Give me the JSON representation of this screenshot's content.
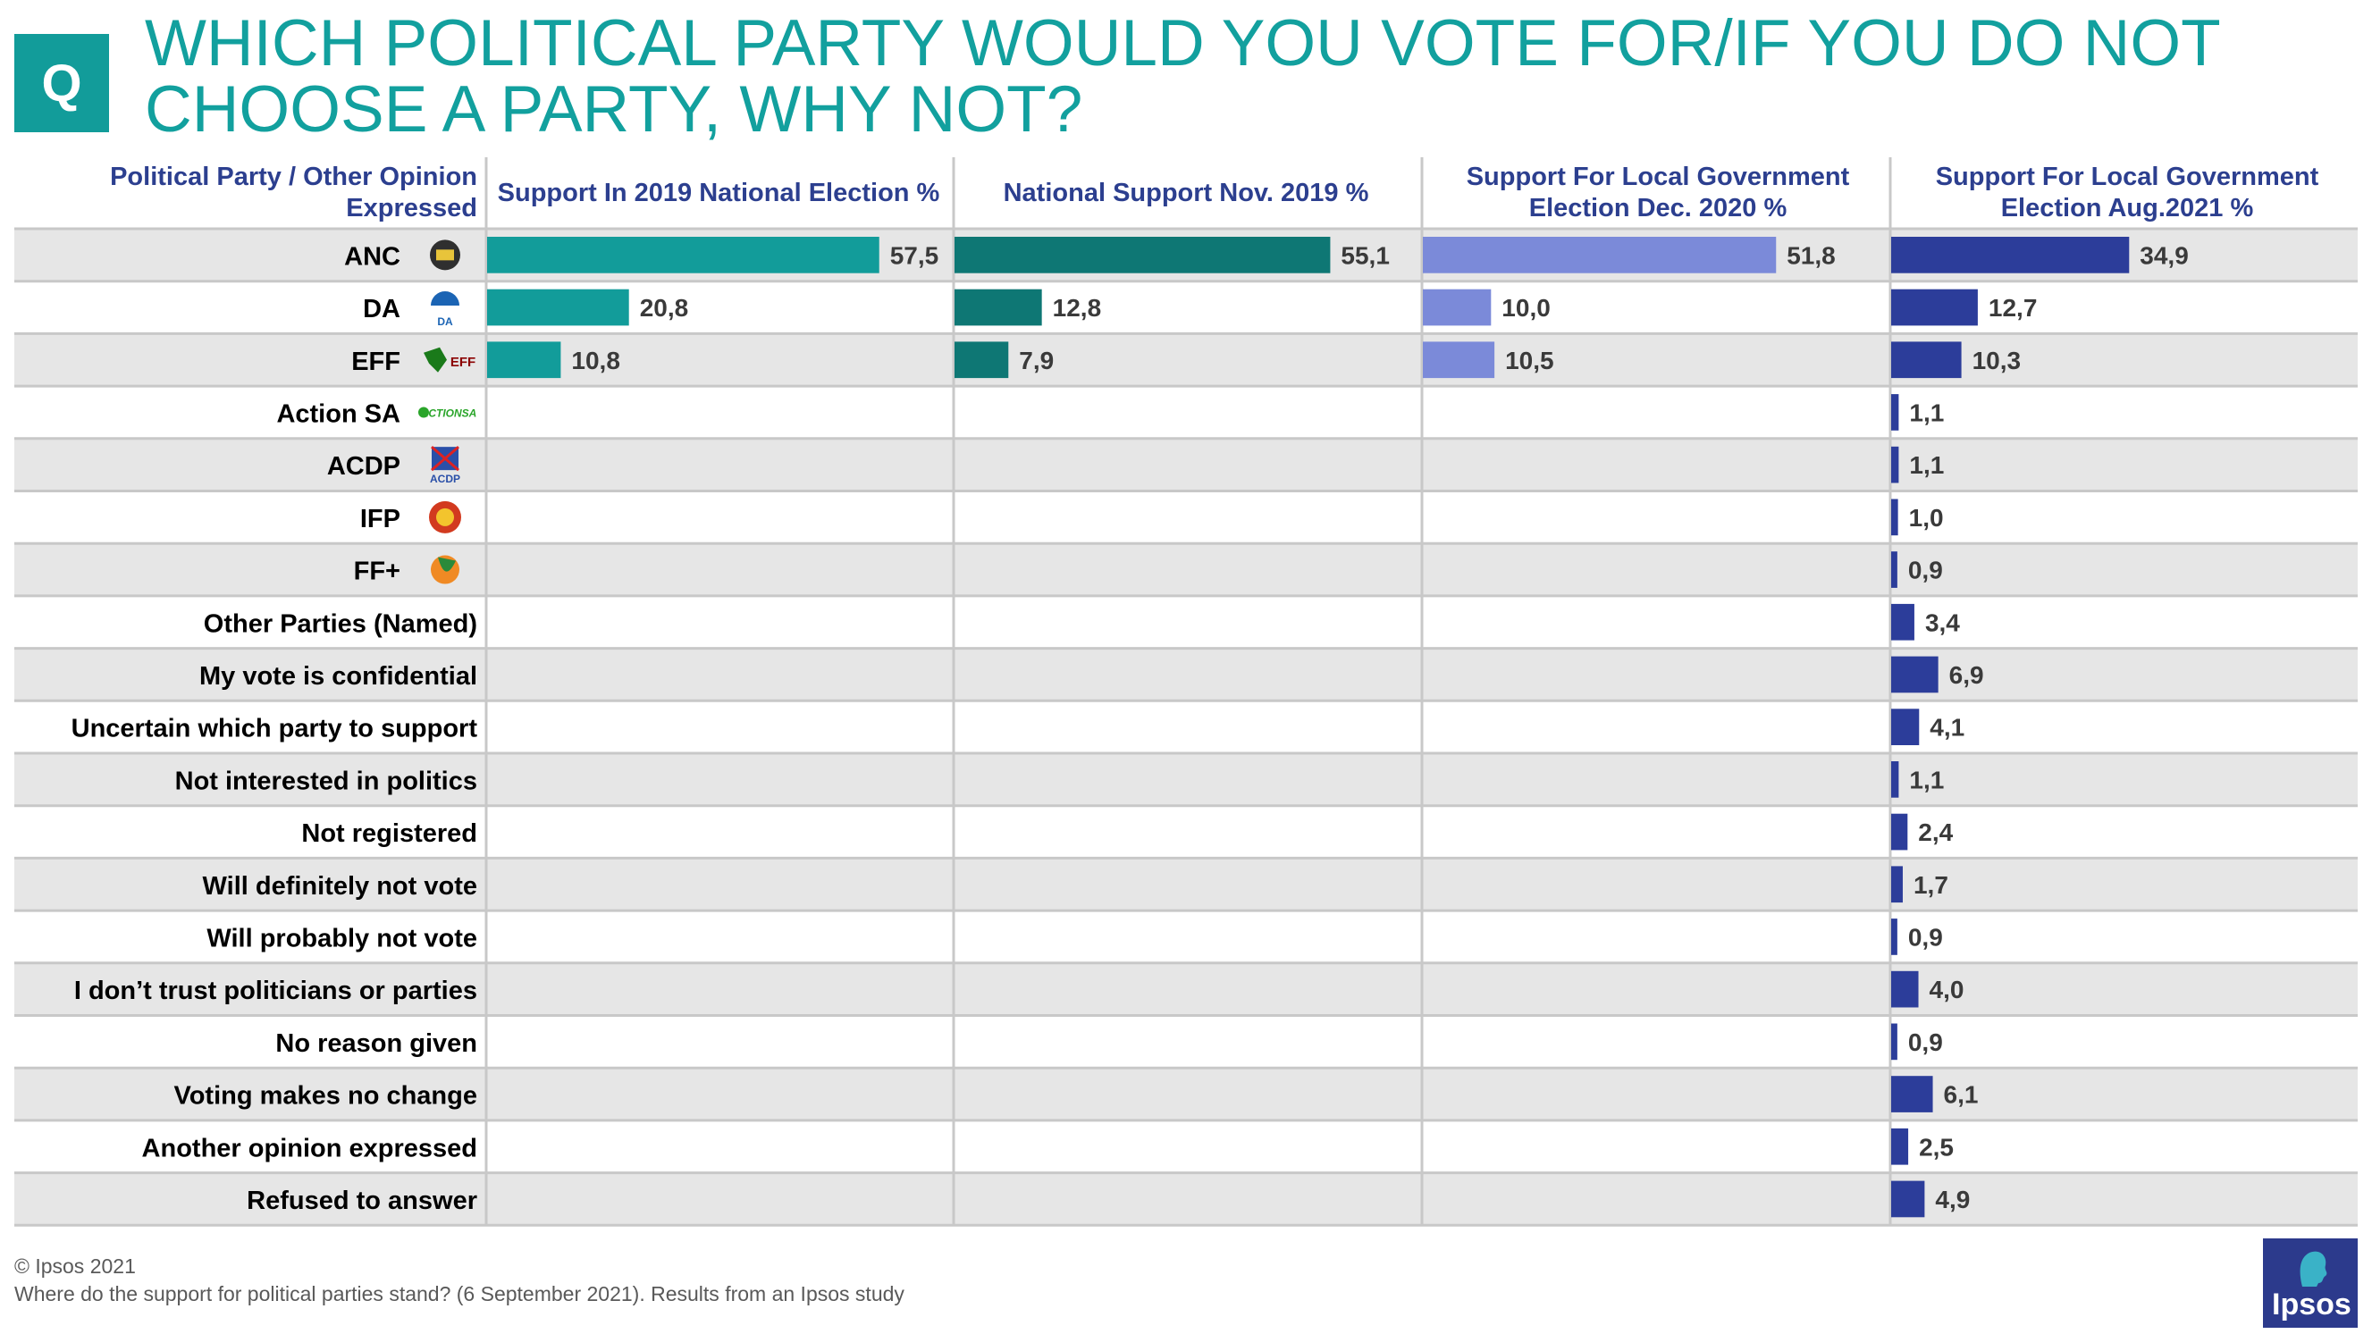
{
  "badge": "Q",
  "title": "WHICH POLITICAL PARTY WOULD YOU VOTE FOR/IF YOU DO NOT CHOOSE A PARTY, WHY NOT?",
  "footer": {
    "copyright": "© Ipsos 2021",
    "source": "Where do the support for political parties stand? (6 September 2021). Results from an Ipsos study"
  },
  "logo_text": "Ipsos",
  "colors": {
    "title": "#12a09e",
    "header_text": "#2c3f8f",
    "band": "#e6e6e6",
    "divider": "#c8c8c8"
  },
  "chart_data": {
    "type": "bar",
    "orientation": "horizontal",
    "label_column_header": "Political Party / Other Opinion Expressed",
    "categories": [
      "ANC",
      "DA",
      "EFF",
      "Action SA",
      "ACDP",
      "IFP",
      "FF+",
      "Other Parties (Named)",
      "My vote is confidential",
      "Uncertain which party to support",
      "Not interested in politics",
      "Not registered",
      "Will definitely not vote",
      "Will probably not vote",
      "I don’t trust politicians or parties",
      "No reason given",
      "Voting makes no change",
      "Another opinion expressed",
      "Refused to answer"
    ],
    "party_logos": {
      "ANC": "anc-logo-icon",
      "DA": "da-logo-icon",
      "EFF": "eff-logo-icon",
      "Action SA": "actionsa-logo-icon",
      "ACDP": "acdp-logo-icon",
      "IFP": "ifp-logo-icon",
      "FF+": "ffplus-logo-icon"
    },
    "logo_text": {
      "DA": "DA",
      "EFF": "EFF",
      "Action SA": "ACTIONSA",
      "ACDP": "ACDP"
    },
    "series": [
      {
        "name": "Support In 2019 National Election %",
        "color": "#129c9a",
        "values": [
          57.5,
          20.8,
          10.8,
          null,
          null,
          null,
          null,
          null,
          null,
          null,
          null,
          null,
          null,
          null,
          null,
          null,
          null,
          null,
          null
        ],
        "labels": [
          "57,5",
          "20,8",
          "10,8",
          "",
          "",
          "",
          "",
          "",
          "",
          "",
          "",
          "",
          "",
          "",
          "",
          "",
          "",
          "",
          ""
        ]
      },
      {
        "name": "National Support Nov. 2019 %",
        "color": "#0e7774",
        "values": [
          55.1,
          12.8,
          7.9,
          null,
          null,
          null,
          null,
          null,
          null,
          null,
          null,
          null,
          null,
          null,
          null,
          null,
          null,
          null,
          null
        ],
        "labels": [
          "55,1",
          "12,8",
          "7,9",
          "",
          "",
          "",
          "",
          "",
          "",
          "",
          "",
          "",
          "",
          "",
          "",
          "",
          "",
          "",
          ""
        ]
      },
      {
        "name": "Support For Local Government Election Dec. 2020 %",
        "color": "#7b8ad9",
        "values": [
          51.8,
          10.0,
          10.5,
          null,
          null,
          null,
          null,
          null,
          null,
          null,
          null,
          null,
          null,
          null,
          null,
          null,
          null,
          null,
          null
        ],
        "labels": [
          "51,8",
          "10,0",
          "10,5",
          "",
          "",
          "",
          "",
          "",
          "",
          "",
          "",
          "",
          "",
          "",
          "",
          "",
          "",
          "",
          ""
        ]
      },
      {
        "name": "Support For Local Government Election Aug.2021 %",
        "color": "#2c3d9a",
        "values": [
          34.9,
          12.7,
          10.3,
          1.1,
          1.1,
          1.0,
          0.9,
          3.4,
          6.9,
          4.1,
          1.1,
          2.4,
          1.7,
          0.9,
          4.0,
          0.9,
          6.1,
          2.5,
          4.9
        ],
        "labels": [
          "34,9",
          "12,7",
          "10,3",
          "1,1",
          "1,1",
          "1,0",
          "0,9",
          "3,4",
          "6,9",
          "4,1",
          "1,1",
          "2,4",
          "1,7",
          "0,9",
          "4,0",
          "0,9",
          "6,1",
          "2,5",
          "4,9"
        ]
      }
    ],
    "xlim": [
      0,
      70
    ],
    "grid": false,
    "legend": "none"
  }
}
